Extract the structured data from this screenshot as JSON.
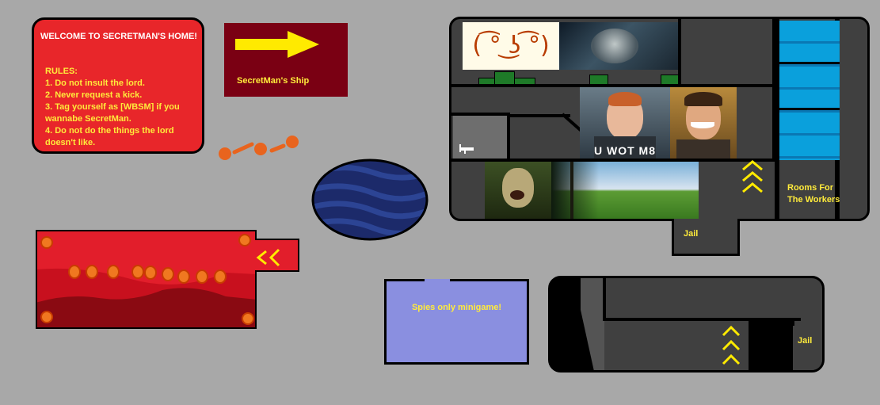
{
  "rules_panel": {
    "title": "WELCOME TO SECRETMAN'S HOME!",
    "heading": "RULES:",
    "items": [
      "1. Do not insult the lord.",
      "2. Never request a kick.",
      "3. Tag yourself as [WBSM] if you wannabe SecretMan.",
      "4. Do not do the things the lord doesn't like."
    ]
  },
  "ship_sign": {
    "label": "SecretMan's Ship",
    "icon": "arrow-right-icon"
  },
  "house": {
    "lenny_face": "( ͡° ͜ʖ ͡°)",
    "meme_caption": "U WOT M8",
    "workers_label": "Rooms For The Workers"
  },
  "jail_top": {
    "label": "Jail"
  },
  "jail_bottom": {
    "label": "Jail"
  },
  "minigame": {
    "label": "Spies only minigame!"
  },
  "colors": {
    "text_yellow": "#ffeb3b",
    "rules_red": "#e8262a",
    "ship_maroon": "#7a0013",
    "water_blue": "#0aa0dc",
    "planet_navy": "#1c2a6a",
    "minigame_lavender": "#8a8fe0",
    "floor_gray": "#404040"
  }
}
